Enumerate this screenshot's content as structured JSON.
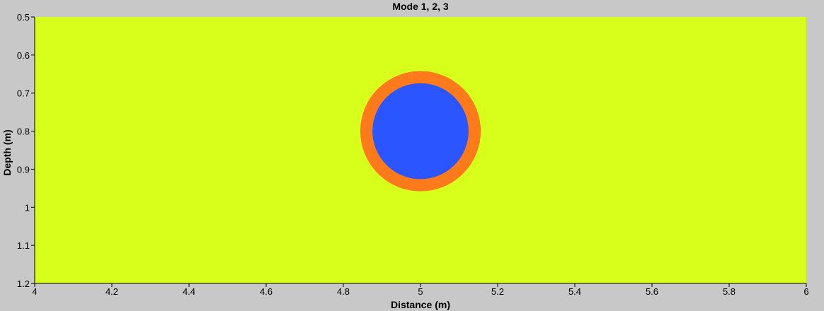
{
  "chart_data": {
    "type": "heatmap",
    "title": "Mode 1, 2, 3",
    "xlabel": "Distance (m)",
    "ylabel": "Depth (m)",
    "xlim": [
      4,
      6
    ],
    "ylim": [
      0.5,
      1.2
    ],
    "y_inverted": true,
    "grid": false,
    "x_ticks": [
      "4",
      "4.2",
      "4.4",
      "4.6",
      "4.8",
      "5",
      "5.2",
      "5.4",
      "5.6",
      "5.8",
      "6"
    ],
    "y_ticks": [
      "0.5",
      "0.6",
      "0.7",
      "0.8",
      "0.9",
      "1",
      "1.1",
      "1.2"
    ],
    "background_color": "#d8ff1c",
    "regions": [
      {
        "shape": "circle",
        "center_x": 5.0,
        "center_y": 0.8,
        "radius_y": 0.158,
        "color": "#ff7a1a"
      },
      {
        "shape": "circle",
        "center_x": 5.0,
        "center_y": 0.8,
        "radius_y": 0.126,
        "color": "#2a55ff"
      }
    ]
  }
}
